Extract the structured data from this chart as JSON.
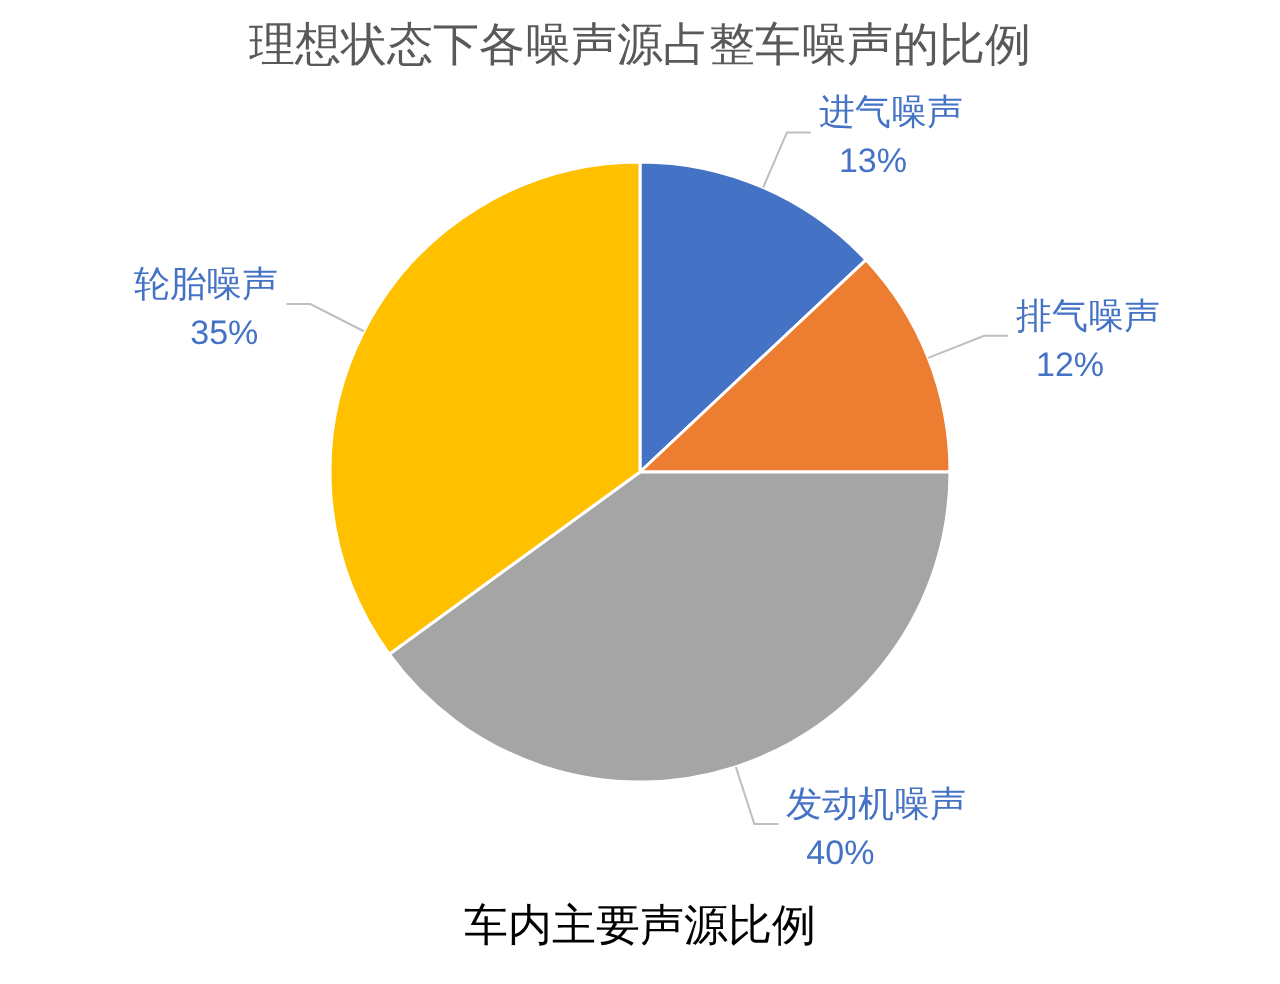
{
  "chart_data": {
    "type": "pie",
    "title": "理想状态下各噪声源占整车噪声的比例",
    "categories": [
      "进气噪声",
      "排气噪声",
      "发动机噪声",
      "轮胎噪声"
    ],
    "values": [
      13,
      12,
      40,
      35
    ],
    "colors": [
      "#4472c4",
      "#ed7d31",
      "#a5a5a5",
      "#ffc000"
    ],
    "value_labels": [
      "13%",
      "12%",
      "40%",
      "35%"
    ],
    "annotations": [
      "车内主要声源比例"
    ]
  }
}
